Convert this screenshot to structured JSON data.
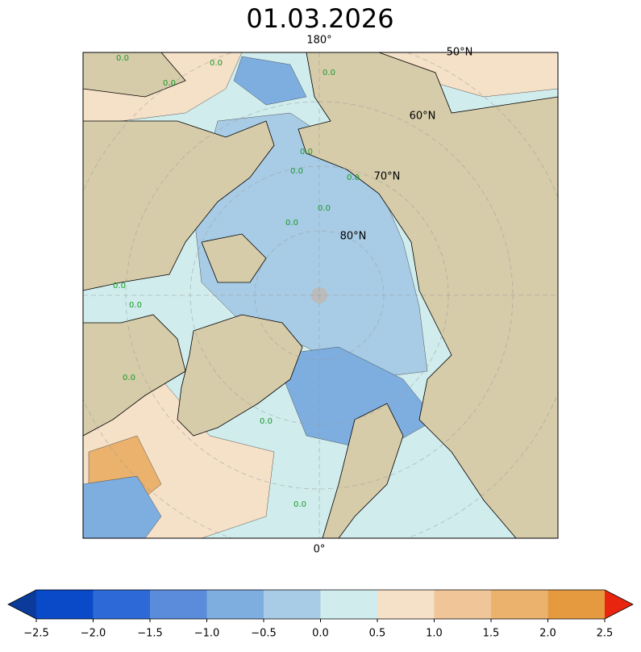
{
  "map": {
    "title": "01.03.2026",
    "graticule_labels": [
      "180°",
      "50°N",
      "60°N",
      "70°N",
      "80°N",
      "0°"
    ],
    "contour_labels": [
      "0.0",
      "0.0",
      "0.0",
      "0.0",
      "0.0",
      "0.0",
      "0.0",
      "0.0",
      "0.0",
      "0.0",
      "0.0",
      "0.0",
      "0.0",
      "0.0"
    ]
  },
  "colorbar": {
    "ticks": [
      {
        "value": -2.5,
        "label": "−2.5"
      },
      {
        "value": -2.0,
        "label": "−2.0"
      },
      {
        "value": -1.5,
        "label": "−1.5"
      },
      {
        "value": -1.0,
        "label": "−1.0"
      },
      {
        "value": -0.5,
        "label": "−0.5"
      },
      {
        "value": 0.0,
        "label": "0.0"
      },
      {
        "value": 0.5,
        "label": "0.5"
      },
      {
        "value": 1.0,
        "label": "1.0"
      },
      {
        "value": 1.5,
        "label": "1.5"
      },
      {
        "value": 2.0,
        "label": "2.0"
      },
      {
        "value": 2.5,
        "label": "2.5"
      }
    ],
    "colors": [
      "#0a4ac9",
      "#2e6ad7",
      "#5b8cdc",
      "#7eaee0",
      "#a8cce6",
      "#d0ecec",
      "#f5e0c8",
      "#f0c699",
      "#eab26c",
      "#e69a40"
    ],
    "extend_colors": [
      "#0a3a9a",
      "#e8250f"
    ]
  }
}
